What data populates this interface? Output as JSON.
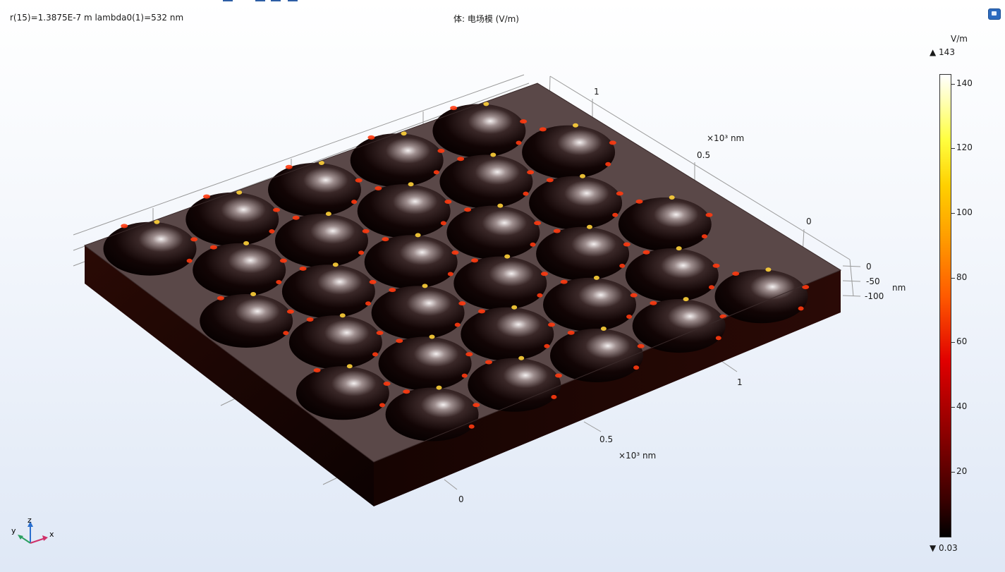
{
  "header": {
    "params": "r(15)=1.3875E-7 m lambda0(1)=532 nm",
    "plot_title": "体: 电场模 (V/m)"
  },
  "colorbar": {
    "unit": "V/m",
    "max_label": "▲ 143",
    "min_label": "▼ 0.03",
    "ticks": [
      "140",
      "120",
      "100",
      "80",
      "60",
      "40",
      "20"
    ],
    "tick_values": [
      140,
      120,
      100,
      80,
      60,
      40,
      20
    ],
    "range": [
      0.03,
      143
    ],
    "colormap": [
      "#000000",
      "#8a0000",
      "#e00000",
      "#ff9900",
      "#ffff40",
      "#ffffff"
    ]
  },
  "axes": {
    "y_ticks": [
      "1",
      "0.5",
      "0"
    ],
    "y_unit": "×10³ nm",
    "x_ticks": [
      "0",
      "0.5",
      "1"
    ],
    "x_unit": "×10³ nm",
    "z_ticks": [
      "0",
      "-50",
      "-100"
    ],
    "z_unit": "nm"
  },
  "triad": {
    "z": "z",
    "y": "y",
    "x": "x"
  },
  "colors": {
    "surface_top": "#5a4848",
    "block_side": "#1a0806",
    "grid": "#9a9a9a",
    "accent_blue": "#2d6bbf"
  },
  "icons": {
    "corner": "view-toggle-icon"
  }
}
